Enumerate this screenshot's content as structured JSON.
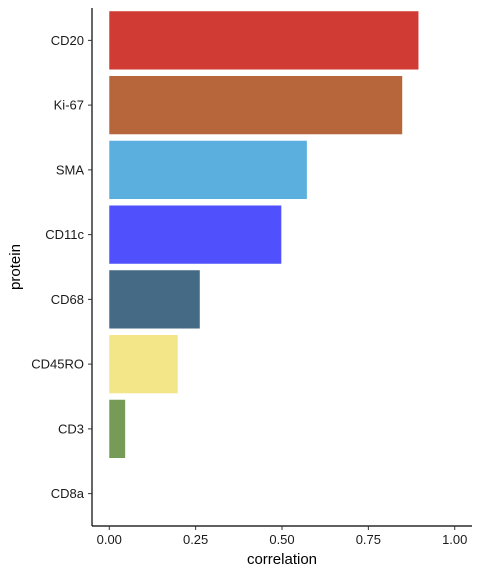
{
  "chart_data": {
    "type": "bar",
    "orientation": "horizontal",
    "xlabel": "correlation",
    "ylabel": "protein",
    "xlim": [
      -0.05,
      1.05
    ],
    "xticks": [
      0,
      0.25,
      0.5,
      0.75,
      1.0
    ],
    "xtick_labels": [
      "0.00",
      "0.25",
      "0.50",
      "0.75",
      "1.00"
    ],
    "grid": false,
    "categories": [
      "CD20",
      "Ki-67",
      "SMA",
      "CD11c",
      "CD68",
      "CD45RO",
      "CD3",
      "CD8a"
    ],
    "values": [
      0.895,
      0.848,
      0.572,
      0.498,
      0.262,
      0.198,
      0.046,
      0.0
    ],
    "colors": [
      "#d03b33",
      "#b7663b",
      "#5aafde",
      "#5050fd",
      "#456a85",
      "#f2e689",
      "#759b56",
      "#b8b8b8"
    ]
  }
}
